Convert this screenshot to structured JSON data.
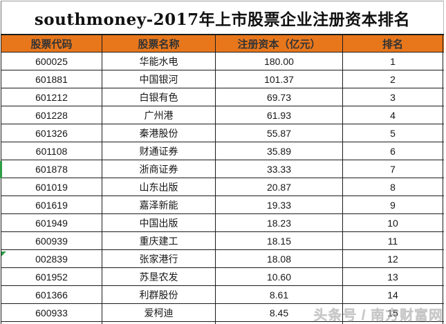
{
  "title": "southmoney-2017年上市股票企业注册资本排名",
  "table": {
    "columns": [
      "股票代码",
      "股票名称",
      "注册资本（亿元）",
      "排名"
    ],
    "rows": [
      [
        "600025",
        "华能水电",
        "180.00",
        "1"
      ],
      [
        "601881",
        "中国银河",
        "101.37",
        "2"
      ],
      [
        "601212",
        "白银有色",
        "69.73",
        "3"
      ],
      [
        "601228",
        "广州港",
        "61.93",
        "4"
      ],
      [
        "601326",
        "秦港股份",
        "55.87",
        "5"
      ],
      [
        "601108",
        "财通证券",
        "35.89",
        "6"
      ],
      [
        "601878",
        "浙商证券",
        "33.33",
        "7"
      ],
      [
        "601019",
        "山东出版",
        "20.87",
        "8"
      ],
      [
        "601619",
        "嘉泽新能",
        "19.33",
        "9"
      ],
      [
        "601949",
        "中国出版",
        "18.23",
        "10"
      ],
      [
        "600939",
        "重庆建工",
        "18.15",
        "11"
      ],
      [
        "002839",
        "张家港行",
        "18.08",
        "12"
      ],
      [
        "601952",
        "苏垦农发",
        "10.60",
        "13"
      ],
      [
        "601366",
        "利群股份",
        "8.61",
        "14"
      ],
      [
        "600933",
        "爱柯迪",
        "8.45",
        "15"
      ]
    ]
  },
  "watermark": "头条号 / 南方财富网",
  "colors": {
    "header_bg": "#E8771C",
    "header_text": "#333333",
    "border": "#1A1A1A",
    "row_bg": "#FFFFFF",
    "title_text": "#111111",
    "indicator_green": "#2E9E44",
    "watermark": "#A6A6A6"
  },
  "chart_data": {
    "type": "table",
    "title": "southmoney-2017年上市股票企业注册资本排名",
    "columns": [
      "股票代码",
      "股票名称",
      "注册资本（亿元）",
      "排名"
    ],
    "categories": [
      "华能水电",
      "中国银河",
      "白银有色",
      "广州港",
      "秦港股份",
      "财通证券",
      "浙商证券",
      "山东出版",
      "嘉泽新能",
      "中国出版",
      "重庆建工",
      "张家港行",
      "苏垦农发",
      "利群股份",
      "爱柯迪"
    ],
    "stock_codes": [
      "600025",
      "601881",
      "601212",
      "601228",
      "601326",
      "601108",
      "601878",
      "601019",
      "601619",
      "601949",
      "600939",
      "002839",
      "601952",
      "601366",
      "600933"
    ],
    "values": [
      180.0,
      101.37,
      69.73,
      61.93,
      55.87,
      35.89,
      33.33,
      20.87,
      19.33,
      18.23,
      18.15,
      18.08,
      10.6,
      8.61,
      8.45
    ],
    "ranks": [
      1,
      2,
      3,
      4,
      5,
      6,
      7,
      8,
      9,
      10,
      11,
      12,
      13,
      14,
      15
    ],
    "ylabel": "注册资本（亿元）"
  }
}
